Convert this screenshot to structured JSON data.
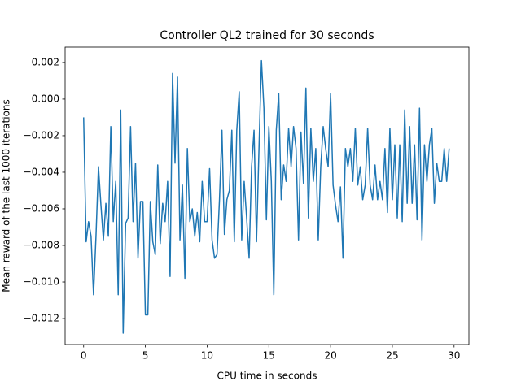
{
  "chart_data": {
    "type": "line",
    "title": "Controller QL2 trained for 30 seconds",
    "x_label": "CPU time in seconds",
    "y_label": "Mean reward of the last 1000 iterations",
    "x": [
      0,
      0.2,
      0.4,
      0.6,
      0.8,
      1.0,
      1.2,
      1.4,
      1.6,
      1.8,
      2.0,
      2.2,
      2.4,
      2.6,
      2.8,
      3.0,
      3.2,
      3.4,
      3.6,
      3.8,
      4.0,
      4.2,
      4.4,
      4.6,
      4.8,
      5.0,
      5.2,
      5.4,
      5.6,
      5.8,
      6.0,
      6.2,
      6.4,
      6.6,
      6.8,
      7.0,
      7.2,
      7.4,
      7.6,
      7.8,
      8.0,
      8.2,
      8.4,
      8.6,
      8.8,
      9.0,
      9.2,
      9.4,
      9.6,
      9.8,
      10.0,
      10.2,
      10.4,
      10.6,
      10.8,
      11.0,
      11.2,
      11.4,
      11.6,
      11.8,
      12.0,
      12.2,
      12.4,
      12.6,
      12.8,
      13.0,
      13.2,
      13.4,
      13.6,
      13.8,
      14.0,
      14.2,
      14.4,
      14.6,
      14.8,
      15.0,
      15.2,
      15.4,
      15.6,
      15.8,
      16.0,
      16.2,
      16.4,
      16.6,
      16.8,
      17.0,
      17.2,
      17.4,
      17.6,
      17.8,
      18.0,
      18.2,
      18.4,
      18.6,
      18.8,
      19.0,
      19.2,
      19.4,
      19.6,
      19.8,
      20.0,
      20.2,
      20.4,
      20.6,
      20.8,
      21.0,
      21.2,
      21.4,
      21.6,
      21.8,
      22.0,
      22.2,
      22.4,
      22.6,
      22.8,
      23.0,
      23.2,
      23.4,
      23.6,
      23.8,
      24.0,
      24.2,
      24.4,
      24.6,
      24.8,
      25.0,
      25.2,
      25.4,
      25.6,
      25.8,
      26.0,
      26.2,
      26.4,
      26.6,
      26.8,
      27.0,
      27.2,
      27.4,
      27.6,
      27.8,
      28.0,
      28.2,
      28.4,
      28.6,
      28.8,
      29.0,
      29.2,
      29.4,
      29.6
    ],
    "series": [
      {
        "name": "reward",
        "color": "#1f77b4",
        "values": [
          -0.001,
          -0.0078,
          -0.0067,
          -0.0075,
          -0.0107,
          -0.0075,
          -0.0037,
          -0.0058,
          -0.0077,
          -0.0057,
          -0.0075,
          -0.0015,
          -0.0067,
          -0.0045,
          -0.0107,
          -0.0006,
          -0.0128,
          -0.0068,
          -0.0065,
          -0.0015,
          -0.0067,
          -0.0035,
          -0.0087,
          -0.0056,
          -0.0056,
          -0.0118,
          -0.0118,
          -0.0056,
          -0.0078,
          -0.0085,
          -0.0036,
          -0.0079,
          -0.0057,
          -0.0067,
          -0.0045,
          -0.0097,
          0.0014,
          -0.0035,
          0.0012,
          -0.0077,
          -0.0047,
          -0.0098,
          -0.0027,
          -0.0067,
          -0.006,
          -0.0075,
          -0.0062,
          -0.0078,
          -0.0045,
          -0.0067,
          -0.0067,
          -0.0038,
          -0.0077,
          -0.0087,
          -0.0085,
          -0.0055,
          -0.0017,
          -0.0074,
          -0.0055,
          -0.005,
          -0.0017,
          -0.0078,
          -0.0017,
          0.0004,
          -0.0077,
          -0.0045,
          -0.0065,
          -0.0087,
          -0.0037,
          -0.0017,
          -0.0078,
          -0.0027,
          0.0021,
          -0.0005,
          -0.0066,
          -0.0015,
          -0.0045,
          -0.0107,
          -0.0017,
          0.0003,
          -0.0055,
          -0.0036,
          -0.0045,
          -0.0016,
          -0.0037,
          -0.0015,
          -0.0027,
          -0.0077,
          -0.0018,
          -0.0046,
          0.0006,
          -0.0065,
          -0.0016,
          -0.0045,
          -0.0027,
          -0.0077,
          -0.0037,
          -0.0015,
          -0.0027,
          -0.0037,
          0.0003,
          -0.0047,
          -0.0058,
          -0.0067,
          -0.0048,
          -0.0087,
          -0.0027,
          -0.0037,
          -0.0027,
          -0.0045,
          -0.0016,
          -0.0047,
          -0.0037,
          -0.0055,
          -0.0047,
          -0.0016,
          -0.0047,
          -0.0055,
          -0.0036,
          -0.0055,
          -0.0045,
          -0.0055,
          -0.0027,
          -0.0062,
          -0.0016,
          -0.0055,
          -0.0025,
          -0.0065,
          -0.0025,
          -0.0067,
          -0.0006,
          -0.0057,
          -0.0015,
          -0.0057,
          -0.0025,
          -0.0066,
          -0.0005,
          -0.0077,
          -0.0025,
          -0.0045,
          -0.0025,
          -0.0016,
          -0.0057,
          -0.0035,
          -0.0045,
          -0.0045,
          -0.0027,
          -0.0045,
          -0.0027
        ]
      }
    ],
    "xlim": [
      -1.5,
      31.2
    ],
    "ylim": [
      -0.01342,
      0.00284
    ],
    "xticks": [
      0,
      5,
      10,
      15,
      20,
      25,
      30
    ],
    "yticks": [
      {
        "value": -0.012,
        "label": "−0.012"
      },
      {
        "value": -0.01,
        "label": "−0.010"
      },
      {
        "value": -0.008,
        "label": "−0.008"
      },
      {
        "value": -0.006,
        "label": "−0.006"
      },
      {
        "value": -0.004,
        "label": "−0.004"
      },
      {
        "value": -0.002,
        "label": "−0.002"
      },
      {
        "value": 0,
        "label": "0.000"
      },
      {
        "value": 0.002,
        "label": "0.002"
      }
    ],
    "grid": false
  }
}
